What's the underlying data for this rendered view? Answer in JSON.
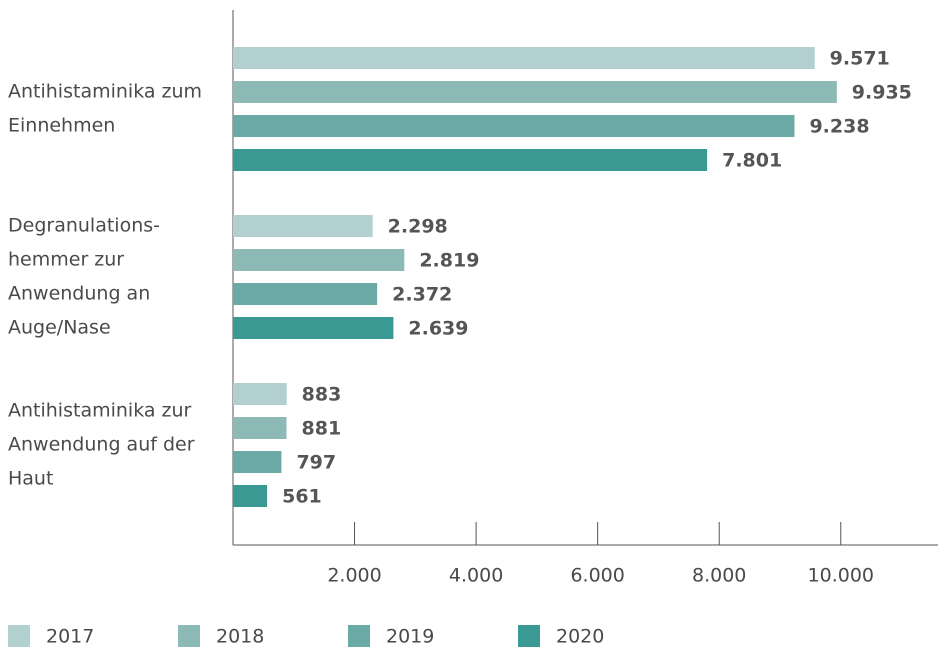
{
  "chart_data": {
    "type": "hbar",
    "categories": [
      [
        "Antihistaminika zum",
        "Einnehmen"
      ],
      [
        "Degranulations-",
        "hemmer zur",
        "Anwendung an",
        "Auge/Nase"
      ],
      [
        "Antihistaminika zur",
        "Anwendung auf der",
        "Haut"
      ]
    ],
    "series": [
      {
        "name": "2017",
        "color": "#b1d0cf",
        "values": [
          9571,
          2298,
          883
        ],
        "value_labels": [
          "9.571",
          "2.298",
          "883"
        ]
      },
      {
        "name": "2018",
        "color": "#8db9b6",
        "values": [
          9935,
          2819,
          881
        ],
        "value_labels": [
          "9.935",
          "2.819",
          "881"
        ]
      },
      {
        "name": "2019",
        "color": "#69aaa5",
        "values": [
          9238,
          2372,
          797
        ],
        "value_labels": [
          "9.238",
          "2.372",
          "797"
        ]
      },
      {
        "name": "2020",
        "color": "#3a9a93",
        "values": [
          7801,
          2639,
          561
        ],
        "value_labels": [
          "7.801",
          "2.639",
          "561"
        ]
      }
    ],
    "xlim": [
      0,
      11600
    ],
    "xticks": [
      {
        "value": 2000,
        "label": "2.000"
      },
      {
        "value": 4000,
        "label": "4.000"
      },
      {
        "value": 6000,
        "label": "6.000"
      },
      {
        "value": 8000,
        "label": "8.000"
      },
      {
        "value": 10000,
        "label": "10.000"
      }
    ]
  }
}
